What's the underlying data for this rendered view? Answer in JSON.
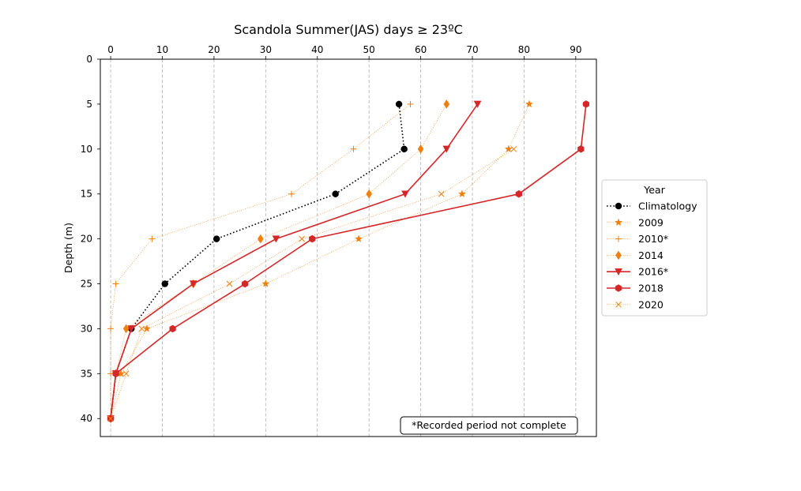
{
  "chart_data": {
    "type": "line",
    "title": "Scandola Summer(JAS) days ≥ 23ºC",
    "xlabel": "",
    "ylabel": "Depth (m)",
    "xlim": [
      -2,
      94
    ],
    "ylim": [
      42,
      0
    ],
    "x_ticks": [
      0,
      10,
      20,
      30,
      40,
      50,
      60,
      70,
      80,
      90
    ],
    "y_ticks": [
      0,
      5,
      10,
      15,
      20,
      25,
      30,
      35,
      40
    ],
    "x_axis_position": "top",
    "y_inverted": true,
    "grid": "vertical dashed",
    "legend": {
      "title": "Year",
      "placement": "outside right"
    },
    "annotation": "*Recorded period not complete",
    "series": [
      {
        "name": "Climatology",
        "color": "#000000",
        "linestyle": "dotted",
        "marker": "circle",
        "points": [
          [
            55.8,
            5
          ],
          [
            56.8,
            10
          ],
          [
            43.5,
            15
          ],
          [
            20.5,
            20
          ],
          [
            10.5,
            25
          ],
          [
            4,
            30
          ],
          [
            1,
            35
          ],
          [
            0,
            40
          ]
        ]
      },
      {
        "name": "2009",
        "color": "#f07f0c",
        "linestyle": "thin-dotted",
        "marker": "star",
        "points": [
          [
            81,
            5
          ],
          [
            77,
            10
          ],
          [
            68,
            15
          ],
          [
            48,
            20
          ],
          [
            30,
            25
          ],
          [
            7,
            30
          ],
          [
            2,
            35
          ],
          [
            0,
            40
          ]
        ]
      },
      {
        "name": "2010*",
        "color": "#f07f0c",
        "linestyle": "thin-dotted",
        "marker": "plus",
        "points": [
          [
            58,
            5
          ],
          [
            47,
            10
          ],
          [
            35,
            15
          ],
          [
            8,
            20
          ],
          [
            1,
            25
          ],
          [
            0,
            30
          ],
          [
            0,
            35
          ],
          [
            0,
            40
          ]
        ]
      },
      {
        "name": "2014",
        "color": "#f07f0c",
        "linestyle": "thin-dotted",
        "marker": "diamond",
        "points": [
          [
            65,
            5
          ],
          [
            60,
            10
          ],
          [
            50,
            15
          ],
          [
            29,
            20
          ],
          [
            16,
            25
          ],
          [
            3,
            30
          ],
          [
            1,
            35
          ],
          [
            0,
            40
          ]
        ]
      },
      {
        "name": "2016*",
        "color": "#d62728",
        "linestyle": "solid",
        "marker": "triangle-down",
        "points": [
          [
            71,
            5
          ],
          [
            65,
            10
          ],
          [
            57,
            15
          ],
          [
            32,
            20
          ],
          [
            16,
            25
          ],
          [
            4,
            30
          ],
          [
            1,
            35
          ],
          [
            0,
            40
          ]
        ]
      },
      {
        "name": "2018",
        "color": "#d62728",
        "linestyle": "solid",
        "marker": "hexagon",
        "points": [
          [
            92,
            5
          ],
          [
            91,
            10
          ],
          [
            79,
            15
          ],
          [
            39,
            20
          ],
          [
            26,
            25
          ],
          [
            12,
            30
          ],
          [
            1,
            35
          ],
          [
            0,
            40
          ]
        ]
      },
      {
        "name": "2020",
        "color": "#f07f0c",
        "linestyle": "thin-dotted",
        "marker": "x",
        "points": [
          [
            78,
            10
          ],
          [
            64,
            15
          ],
          [
            37,
            20
          ],
          [
            23,
            25
          ],
          [
            6,
            30
          ],
          [
            3,
            35
          ],
          [
            0,
            40
          ]
        ]
      }
    ]
  }
}
